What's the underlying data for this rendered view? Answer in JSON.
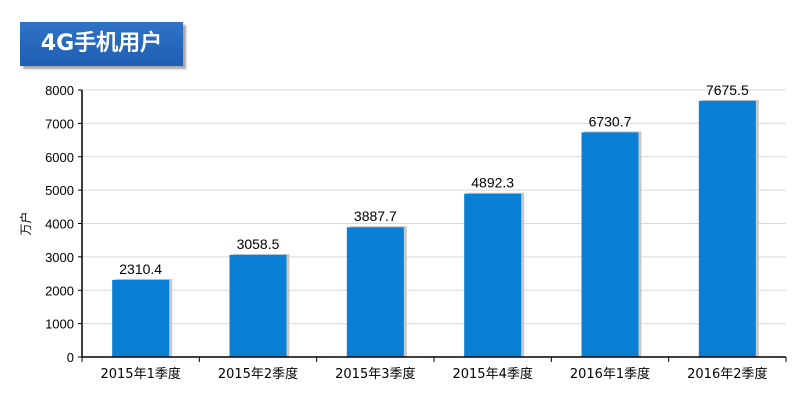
{
  "title": "4G手机用户",
  "colors": {
    "bar": "#0a7fd6",
    "bar_shadow": "#c8c8c8",
    "title_bg": "#1f5fb3",
    "grid": "#d9d9d9",
    "axis": "#000000"
  },
  "chart_data": {
    "type": "bar",
    "title": "4G手机用户",
    "xlabel": "",
    "ylabel": "万户",
    "categories": [
      "2015年1季度",
      "2015年2季度",
      "2015年3季度",
      "2015年4季度",
      "2016年1季度",
      "2016年2季度"
    ],
    "values": [
      2310.4,
      3058.5,
      3887.7,
      4892.3,
      6730.7,
      7675.5
    ],
    "data_labels": [
      "2310.4",
      "3058.5",
      "3887.7",
      "4892.3",
      "6730.7",
      "7675.5"
    ],
    "ylim": [
      0,
      8000
    ],
    "yticks": [
      0,
      1000,
      2000,
      3000,
      4000,
      5000,
      6000,
      7000,
      8000
    ],
    "ytick_labels": [
      "0",
      "1000",
      "2000",
      "3000",
      "4000",
      "5000",
      "6000",
      "7000",
      "8000"
    ],
    "grid": true,
    "legend": "none"
  }
}
